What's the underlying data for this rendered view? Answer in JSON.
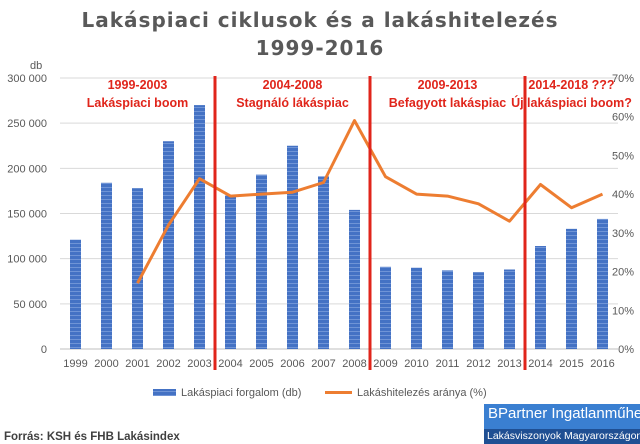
{
  "chart_data": {
    "type": "bar+line",
    "title": [
      "Lakáspiaci ciklusok és a lakáshitelezés",
      "1999-2016"
    ],
    "left_axis_unit": "db",
    "left_ylim": [
      0,
      300000
    ],
    "left_ticks": [
      "0",
      "50 000",
      "100 000",
      "150 000",
      "200 000",
      "250 000",
      "300 000"
    ],
    "right_ylim": [
      0,
      0.7
    ],
    "right_ticks": [
      "0%",
      "10%",
      "20%",
      "30%",
      "40%",
      "50%",
      "60%",
      "70%"
    ],
    "categories": [
      "1999",
      "2000",
      "2001",
      "2002",
      "2003",
      "2004",
      "2005",
      "2006",
      "2007",
      "2008",
      "2009",
      "2010",
      "2011",
      "2012",
      "2013",
      "2014",
      "2015",
      "2016"
    ],
    "series": [
      {
        "name": "Lakáspiaci forgalom (db)",
        "kind": "bar",
        "axis": "left",
        "values": [
          121000,
          184000,
          178000,
          230000,
          270000,
          170000,
          193000,
          225000,
          191000,
          154000,
          91000,
          90000,
          87000,
          85000,
          88000,
          114000,
          133000,
          144000
        ]
      },
      {
        "name": "Lakáshitelezés aránya (%)",
        "kind": "line",
        "axis": "right",
        "values": [
          null,
          null,
          0.17,
          0.32,
          0.44,
          0.395,
          0.4,
          0.405,
          0.43,
          0.59,
          0.445,
          0.4,
          0.395,
          0.375,
          0.33,
          0.425,
          0.365,
          0.4
        ]
      }
    ],
    "dividers_after_category": [
      "2003",
      "2008",
      "2013"
    ],
    "periods": [
      {
        "label1": "1999-2003",
        "label2": "Lakáspiaci boom"
      },
      {
        "label1": "2004-2008",
        "label2": "Stagnáló lákáspiac"
      },
      {
        "label1": "2009-2013",
        "label2": "Befagyott lakáspiac"
      },
      {
        "label1": "2014-2018 ???",
        "label2": "Új lakáspiaci boom?"
      }
    ],
    "legend": [
      "Lakáspiaci forgalom (db)",
      "Lakáshitelezés aránya (%)"
    ],
    "colors": {
      "bar": "#4472c4",
      "line": "#ed7d31",
      "divider": "#e0251b",
      "period_text": "#e0251b",
      "grid": "#d9d9d9"
    }
  },
  "source": "Forrás: KSH és FHB Lakásindex",
  "brand": {
    "name": "BPartner Ingatlanműhely",
    "tagline": "Lakásviszonyok Magyarországon"
  }
}
